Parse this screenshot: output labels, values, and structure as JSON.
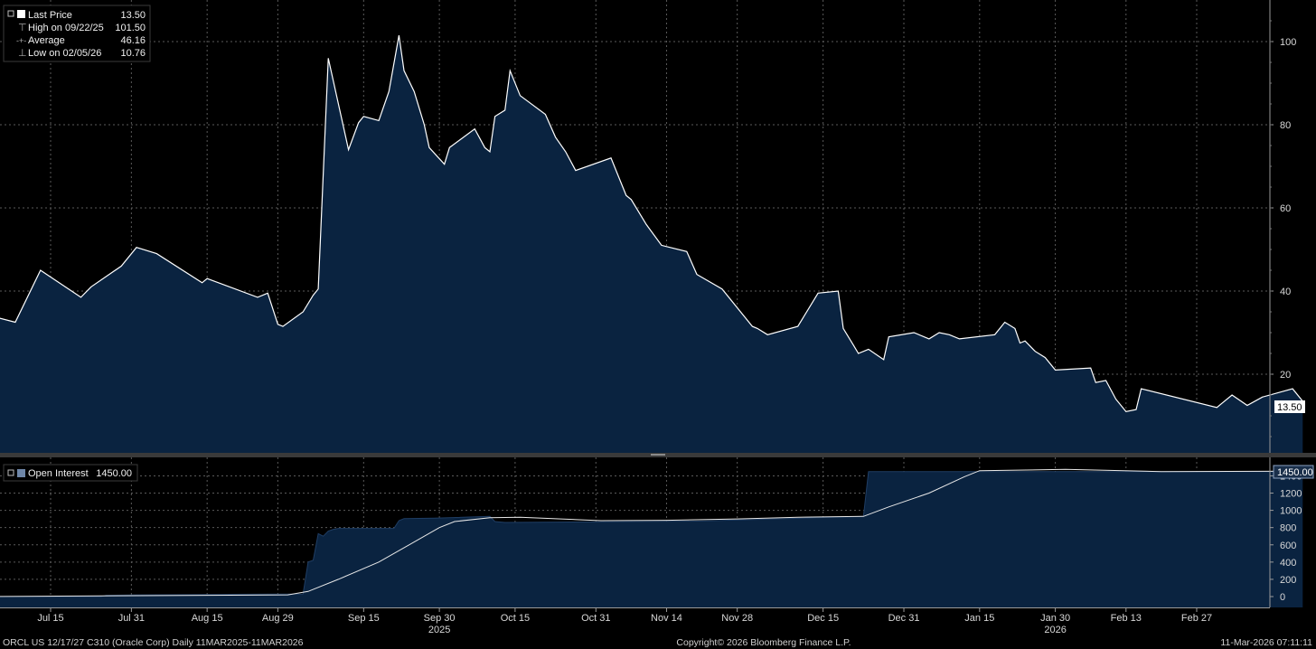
{
  "chart_data": [
    {
      "type": "area",
      "legend": {
        "rows": [
          {
            "label": "Last Price",
            "value": "13.50"
          },
          {
            "label": "High on 09/22/25",
            "value": "101.50"
          },
          {
            "label": "Average",
            "value": "46.16"
          },
          {
            "label": "Low on 02/05/26",
            "value": "10.76"
          }
        ],
        "placement": "top-left"
      },
      "last_value_tag": "13.50",
      "ylim": [
        0,
        110
      ],
      "y_ticks": [
        "20",
        "40",
        "60",
        "80",
        "100"
      ],
      "grid": true,
      "series": [
        {
          "name": "Last Price",
          "points": [
            [
              "2025-06-30",
              35
            ],
            [
              "2025-07-08",
              32.5
            ],
            [
              "2025-07-13",
              45
            ],
            [
              "2025-07-21",
              38.5
            ],
            [
              "2025-07-23",
              41
            ],
            [
              "2025-07-29",
              46
            ],
            [
              "2025-08-01",
              50.5
            ],
            [
              "2025-08-05",
              49
            ],
            [
              "2025-08-14",
              42
            ],
            [
              "2025-08-15",
              43
            ],
            [
              "2025-08-25",
              38.5
            ],
            [
              "2025-08-27",
              39.5
            ],
            [
              "2025-08-29",
              32
            ],
            [
              "2025-08-30",
              31.5
            ],
            [
              "2025-09-03",
              35
            ],
            [
              "2025-09-05",
              39
            ],
            [
              "2025-09-06",
              40.5
            ],
            [
              "2025-09-08",
              96
            ],
            [
              "2025-09-12",
              74
            ],
            [
              "2025-09-14",
              80.5
            ],
            [
              "2025-09-15",
              82
            ],
            [
              "2025-09-18",
              81
            ],
            [
              "2025-09-20",
              88
            ],
            [
              "2025-09-22",
              101.5
            ],
            [
              "2025-09-23",
              93
            ],
            [
              "2025-09-25",
              88
            ],
            [
              "2025-09-27",
              80
            ],
            [
              "2025-09-28",
              74.5
            ],
            [
              "2025-10-01",
              70.5
            ],
            [
              "2025-10-02",
              74.5
            ],
            [
              "2025-10-07",
              79
            ],
            [
              "2025-10-09",
              74.5
            ],
            [
              "2025-10-10",
              73.5
            ],
            [
              "2025-10-11",
              82
            ],
            [
              "2025-10-13",
              83.5
            ],
            [
              "2025-10-14",
              93
            ],
            [
              "2025-10-16",
              87
            ],
            [
              "2025-10-21",
              82.5
            ],
            [
              "2025-10-23",
              77
            ],
            [
              "2025-10-25",
              73.5
            ],
            [
              "2025-10-27",
              69
            ],
            [
              "2025-11-03",
              72
            ],
            [
              "2025-11-06",
              63
            ],
            [
              "2025-11-07",
              62
            ],
            [
              "2025-11-10",
              56
            ],
            [
              "2025-11-13",
              51
            ],
            [
              "2025-11-18",
              49.5
            ],
            [
              "2025-11-20",
              44
            ],
            [
              "2025-11-25",
              40.5
            ],
            [
              "2025-12-01",
              31.5
            ],
            [
              "2025-12-02",
              31
            ],
            [
              "2025-12-04",
              29.5
            ],
            [
              "2025-12-10",
              31.5
            ],
            [
              "2025-12-14",
              39.5
            ],
            [
              "2025-12-18",
              40
            ],
            [
              "2025-12-19",
              31
            ],
            [
              "2025-12-21",
              27
            ],
            [
              "2025-12-22",
              25
            ],
            [
              "2025-12-24",
              26
            ],
            [
              "2025-12-27",
              23.5
            ],
            [
              "2025-12-28",
              29
            ],
            [
              "2026-01-02",
              30
            ],
            [
              "2026-01-05",
              28.5
            ],
            [
              "2026-01-07",
              30
            ],
            [
              "2026-01-09",
              29.5
            ],
            [
              "2026-01-11",
              28.5
            ],
            [
              "2026-01-18",
              29.5
            ],
            [
              "2026-01-20",
              32.5
            ],
            [
              "2026-01-22",
              31
            ],
            [
              "2026-01-23",
              27.5
            ],
            [
              "2026-01-24",
              28
            ],
            [
              "2026-01-26",
              25.5
            ],
            [
              "2026-01-28",
              24
            ],
            [
              "2026-01-30",
              21
            ],
            [
              "2026-02-06",
              21.5
            ],
            [
              "2026-02-07",
              18
            ],
            [
              "2026-02-09",
              18.5
            ],
            [
              "2026-02-11",
              14
            ],
            [
              "2026-02-13",
              11
            ],
            [
              "2026-02-15",
              11.5
            ],
            [
              "2026-02-16",
              16.5
            ],
            [
              "2026-03-03",
              12
            ],
            [
              "2026-03-04",
              13
            ],
            [
              "2026-03-06",
              15
            ],
            [
              "2026-03-09",
              12.5
            ],
            [
              "2026-03-12",
              14.5
            ],
            [
              "2026-03-18",
              16.5
            ],
            [
              "2026-03-20",
              13.5
            ]
          ]
        }
      ]
    },
    {
      "type": "area",
      "legend": {
        "rows": [
          {
            "label": "Open Interest",
            "value": "1450.00"
          }
        ],
        "placement": "top-left"
      },
      "last_value_tag": "1450.00",
      "ylim": [
        -100,
        1600
      ],
      "y_ticks": [
        "0",
        "200",
        "400",
        "600",
        "800",
        "1000",
        "1200",
        "1400"
      ],
      "grid": true,
      "series": [
        {
          "name": "Open Interest",
          "points": [
            [
              "2025-06-30",
              0
            ],
            [
              "2025-07-25",
              0
            ],
            [
              "2025-07-26",
              15
            ],
            [
              "2025-08-01",
              20
            ],
            [
              "2025-08-18",
              25
            ],
            [
              "2025-09-03",
              30
            ],
            [
              "2025-09-04",
              400
            ],
            [
              "2025-09-05",
              420
            ],
            [
              "2025-09-06",
              730
            ],
            [
              "2025-09-07",
              700
            ],
            [
              "2025-09-08",
              760
            ],
            [
              "2025-09-09",
              780
            ],
            [
              "2025-09-10",
              790
            ],
            [
              "2025-09-21",
              790
            ],
            [
              "2025-09-22",
              880
            ],
            [
              "2025-09-23",
              905
            ],
            [
              "2025-09-29",
              910
            ],
            [
              "2025-10-10",
              930
            ],
            [
              "2025-10-11",
              870
            ],
            [
              "2025-10-13",
              860
            ],
            [
              "2025-11-20",
              875
            ],
            [
              "2025-12-23",
              930
            ],
            [
              "2025-12-24",
              1450
            ],
            [
              "2026-03-20",
              1450
            ]
          ]
        },
        {
          "name": "Open Interest Moving Average",
          "points": [
            [
              "2025-06-30",
              0
            ],
            [
              "2025-08-31",
              20
            ],
            [
              "2025-09-04",
              60
            ],
            [
              "2025-09-10",
              200
            ],
            [
              "2025-09-18",
              400
            ],
            [
              "2025-09-24",
              600
            ],
            [
              "2025-09-30",
              800
            ],
            [
              "2025-10-03",
              870
            ],
            [
              "2025-10-10",
              915
            ],
            [
              "2025-10-16",
              920
            ],
            [
              "2025-11-01",
              880
            ],
            [
              "2025-11-14",
              885
            ],
            [
              "2025-11-28",
              900
            ],
            [
              "2025-12-10",
              920
            ],
            [
              "2025-12-23",
              930
            ],
            [
              "2025-12-28",
              1040
            ],
            [
              "2026-01-05",
              1200
            ],
            [
              "2026-01-12",
              1390
            ],
            [
              "2026-01-15",
              1460
            ],
            [
              "2026-02-01",
              1475
            ],
            [
              "2026-02-20",
              1450
            ],
            [
              "2026-03-20",
              1455
            ]
          ]
        }
      ]
    }
  ],
  "x_axis": {
    "ticks": [
      {
        "label": "Jul 15",
        "date": "2025-07-15"
      },
      {
        "label": "Jul 31",
        "date": "2025-07-31"
      },
      {
        "label": "Aug 15",
        "date": "2025-08-15"
      },
      {
        "label": "Aug 29",
        "date": "2025-08-29"
      },
      {
        "label": "Sep 15",
        "date": "2025-09-15"
      },
      {
        "label": "Sep 30",
        "date": "2025-09-30"
      },
      {
        "label": "Oct 15",
        "date": "2025-10-15"
      },
      {
        "label": "Oct 31",
        "date": "2025-10-31"
      },
      {
        "label": "Nov 14",
        "date": "2025-11-14"
      },
      {
        "label": "Nov 28",
        "date": "2025-11-28"
      },
      {
        "label": "Dec 15",
        "date": "2025-12-15"
      },
      {
        "label": "Dec 31",
        "date": "2025-12-31"
      },
      {
        "label": "Jan 15",
        "date": "2026-01-15"
      },
      {
        "label": "Jan 30",
        "date": "2026-01-30"
      },
      {
        "label": "Feb 13",
        "date": "2026-02-13"
      },
      {
        "label": "Feb 27",
        "date": "2026-02-27"
      }
    ],
    "years": [
      {
        "label": "2025",
        "date": "2025-09-30"
      },
      {
        "label": "2026",
        "date": "2026-01-30"
      }
    ]
  },
  "footer": {
    "left": "ORCL US 12/17/27 C310 (Oracle Corp) Daily 11MAR2025-11MAR2026",
    "center": "Copyright© 2026 Bloomberg Finance L.P.",
    "right": "11-Mar-2026 07:11:11"
  },
  "colors": {
    "background": "#000000",
    "area_fill": "#0a2340",
    "line": "#ffffff",
    "grid": "#5a5a5a",
    "tag_bg": "#ffffff",
    "oi_tag_bg": "#1a2f4a"
  }
}
